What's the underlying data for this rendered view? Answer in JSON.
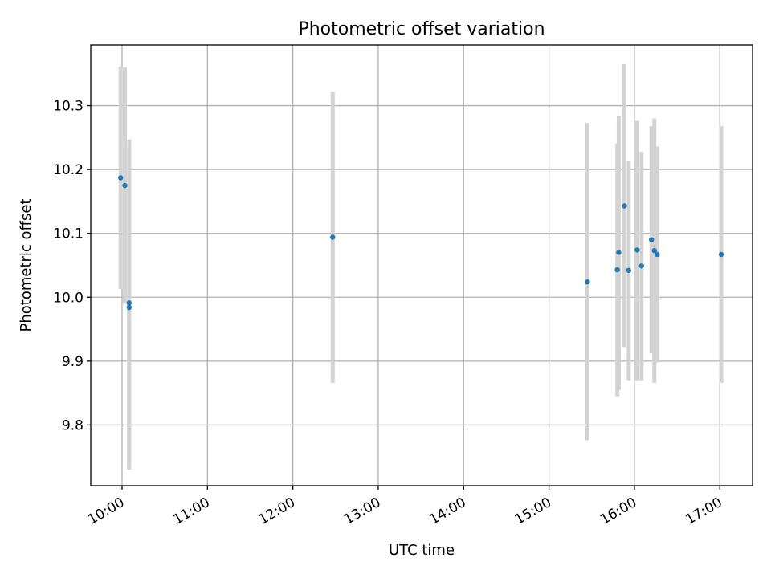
{
  "chart_data": {
    "type": "scatter",
    "title": "Photometric offset variation",
    "xlabel": "UTC time",
    "ylabel": "Photometric offset",
    "x_tick_labels": [
      "10:00",
      "11:00",
      "12:00",
      "13:00",
      "14:00",
      "15:00",
      "16:00",
      "17:00"
    ],
    "y_tick_labels": [
      "9.8",
      "9.9",
      "10.0",
      "10.1",
      "10.2",
      "10.3"
    ],
    "xlim": [
      "09:38",
      "17:23"
    ],
    "ylim": [
      9.705,
      10.395
    ],
    "grid": true,
    "marker_color": "#1f77b4",
    "errorbar_color": "#d3d3d3",
    "points": [
      {
        "x": "09:59",
        "y": 10.187,
        "ylo": 10.013,
        "yhi": 10.361
      },
      {
        "x": "10:02",
        "y": 10.175,
        "ylo": 9.99,
        "yhi": 10.36
      },
      {
        "x": "10:05",
        "y": 9.991,
        "ylo": 9.735,
        "yhi": 10.247
      },
      {
        "x": "10:05",
        "y": 9.984,
        "ylo": 9.73,
        "yhi": 10.238
      },
      {
        "x": "12:28",
        "y": 10.094,
        "ylo": 9.866,
        "yhi": 10.322
      },
      {
        "x": "15:27",
        "y": 10.024,
        "ylo": 9.776,
        "yhi": 10.273
      },
      {
        "x": "15:48",
        "y": 10.043,
        "ylo": 9.845,
        "yhi": 10.241
      },
      {
        "x": "15:49",
        "y": 10.07,
        "ylo": 9.855,
        "yhi": 10.284
      },
      {
        "x": "15:53",
        "y": 10.143,
        "ylo": 9.922,
        "yhi": 10.365
      },
      {
        "x": "15:56",
        "y": 10.042,
        "ylo": 9.87,
        "yhi": 10.214
      },
      {
        "x": "16:02",
        "y": 10.074,
        "ylo": 9.87,
        "yhi": 10.276
      },
      {
        "x": "16:05",
        "y": 10.049,
        "ylo": 9.87,
        "yhi": 10.228
      },
      {
        "x": "16:12",
        "y": 10.09,
        "ylo": 9.912,
        "yhi": 10.268
      },
      {
        "x": "16:14",
        "y": 10.073,
        "ylo": 9.866,
        "yhi": 10.28
      },
      {
        "x": "16:16",
        "y": 10.067,
        "ylo": 9.898,
        "yhi": 10.236
      },
      {
        "x": "17:01",
        "y": 10.067,
        "ylo": 9.866,
        "yhi": 10.268
      }
    ]
  }
}
